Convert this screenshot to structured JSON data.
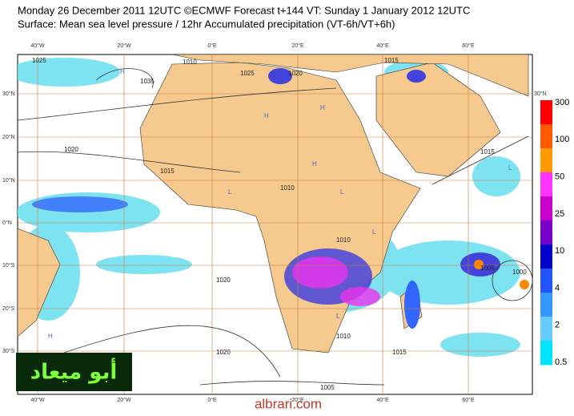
{
  "header": {
    "line1": "Monday 26 December 2011 12UTC ©ECMWF Forecast t+144 VT: Sunday 1 January 2012 12UTC",
    "line2": "Surface: Mean sea level pressure / 12hr Accumulated precipitation (VT-6h/VT+6h)"
  },
  "lon_labels": [
    "40°W",
    "20°W",
    "0°E",
    "20°E",
    "40°E",
    "60°E"
  ],
  "lat_labels": [
    "30°N",
    "20°N",
    "10°N",
    "0°N",
    "10°S",
    "20°S",
    "30°S"
  ],
  "lat_right": "30°N",
  "colorbar": {
    "labels": [
      300,
      100,
      50,
      25,
      10,
      4,
      2,
      0.5
    ]
  },
  "isobars": [
    "1025",
    "1035",
    "1020",
    "1015",
    "1010",
    "1010",
    "1015",
    "1020",
    "1025",
    "1010",
    "1005",
    "1015",
    "1000",
    "1005",
    "1020",
    "1015",
    "1010",
    "1020"
  ],
  "pressure_marks": [
    "H",
    "H",
    "H",
    "H",
    "L",
    "L",
    "L",
    "L",
    "H",
    "L"
  ],
  "watermark": "أبو ميعاد",
  "footer": "albrari.com"
}
